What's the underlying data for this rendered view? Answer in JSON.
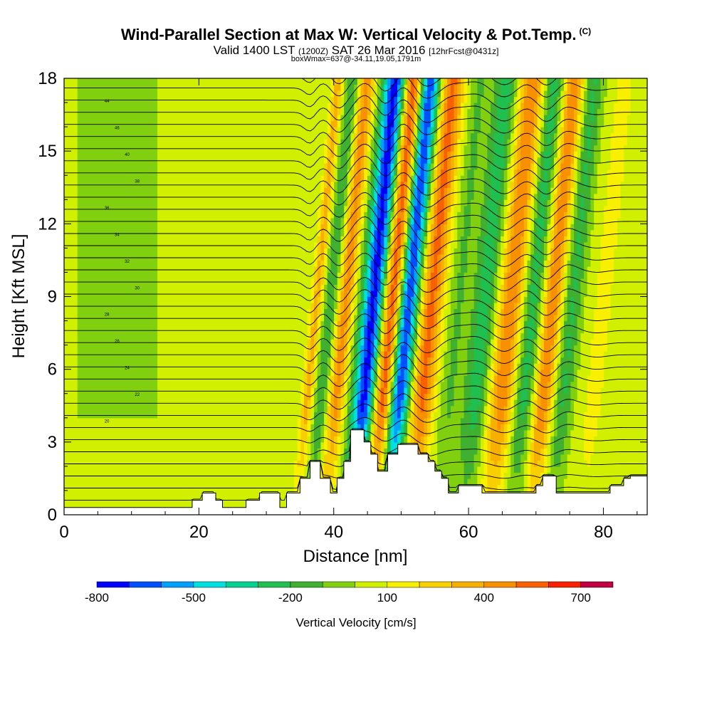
{
  "titles": {
    "main": "Wind-Parallel Section at Max W: Vertical Velocity & Pot.Temp.",
    "copyright": "(C)",
    "valid_prefix": "Valid 1400 LST",
    "valid_z": "(1200Z)",
    "valid_date": "SAT 26 Mar 2016",
    "valid_fcst": "[12hrFcst@0431z]",
    "box_info": "boxWmax=637@-34.11,19.05,1791m"
  },
  "chart_data": {
    "type": "cross-section",
    "xlabel": "Distance [nm]",
    "ylabel": "Height [Kft MSL]",
    "xlim": [
      0,
      86.5
    ],
    "ylim": [
      0,
      18
    ],
    "xticks": [
      0,
      20,
      40,
      60,
      80
    ],
    "yticks": [
      0,
      3,
      6,
      9,
      12,
      15,
      18
    ],
    "xticklabels": [
      "0",
      "20",
      "40",
      "60",
      "80"
    ],
    "yticklabels": [
      "0",
      "3",
      "6",
      "9",
      "12",
      "15",
      "18"
    ],
    "colorbar": {
      "label": "Vertical Velocity [cm/s]",
      "levels": [
        -800,
        -700,
        -600,
        -500,
        -400,
        -300,
        -200,
        -100,
        0,
        100,
        200,
        300,
        400,
        500,
        600,
        700,
        800
      ],
      "colors": [
        "#0000ff",
        "#0050ff",
        "#00a0ff",
        "#00e0e0",
        "#00d090",
        "#20c050",
        "#40b030",
        "#80d010",
        "#d0f000",
        "#f8f000",
        "#f8d000",
        "#f8b000",
        "#f89000",
        "#f86000",
        "#f82000",
        "#c00040"
      ],
      "ticklabels": [
        "-800",
        "-500",
        "-200",
        "100",
        "400",
        "700"
      ],
      "tickvalues": [
        -800,
        -500,
        -200,
        100,
        400,
        700
      ]
    },
    "velocity_bands": [
      {
        "x": 36.5,
        "w": 300,
        "width": 0.8,
        "tilt": 0.0
      },
      {
        "x": 38.6,
        "w": -250,
        "width": 1.0,
        "tilt": 0.0
      },
      {
        "x": 40.8,
        "w": 400,
        "width": 1.2,
        "tilt": 0.0
      },
      {
        "x": 45.0,
        "w": -800,
        "width": 1.8,
        "tilt": 0.0
      },
      {
        "x": 47.8,
        "w": 700,
        "width": 1.6,
        "tilt": 0.0
      },
      {
        "x": 50.0,
        "w": -800,
        "width": 1.7,
        "tilt": 0.0
      },
      {
        "x": 53.5,
        "w": 500,
        "width": 1.7,
        "tilt": 0.0
      },
      {
        "x": 57.5,
        "w": -150,
        "width": 1.4,
        "tilt": 0.0
      },
      {
        "x": 61.5,
        "w": -300,
        "width": 2.0,
        "tilt": 0.0
      },
      {
        "x": 65.3,
        "w": 450,
        "width": 2.0,
        "tilt": 0.0
      },
      {
        "x": 68.5,
        "w": -300,
        "width": 1.6,
        "tilt": 0.0
      },
      {
        "x": 71.5,
        "w": 450,
        "width": 1.4,
        "tilt": 0.0
      },
      {
        "x": 74.5,
        "w": -250,
        "width": 1.4,
        "tilt": 0.0
      },
      {
        "x": 79.0,
        "w": 100,
        "width": 1.5,
        "tilt": 0.0
      }
    ],
    "terrain": {
      "x": [
        0,
        19,
        19,
        20.5,
        20.5,
        22.5,
        22.5,
        23.5,
        23.5,
        27,
        27,
        29,
        29,
        32,
        32,
        33,
        33,
        35,
        35,
        36.5,
        36.5,
        38,
        38,
        39.5,
        39.5,
        40.5,
        40.5,
        41.5,
        41.5,
        42.5,
        42.5,
        44.5,
        44.5,
        45.5,
        45.5,
        46.5,
        46.5,
        48,
        48,
        49.5,
        49.5,
        52.5,
        52.5,
        54,
        54,
        55,
        55,
        56,
        56,
        57,
        57,
        58.5,
        58.5,
        62,
        62,
        70,
        70,
        71,
        71,
        73,
        73,
        81,
        81,
        83,
        83,
        84,
        84,
        86.5
      ],
      "y": [
        0.3,
        0.3,
        0.6,
        0.6,
        0.9,
        0.9,
        0.6,
        0.6,
        0.3,
        0.3,
        0.6,
        0.6,
        0.9,
        0.9,
        0.3,
        0.3,
        0.9,
        0.9,
        1.5,
        1.5,
        2.2,
        2.2,
        1.5,
        1.5,
        0.9,
        0.9,
        1.5,
        1.5,
        2.2,
        2.2,
        3.5,
        3.5,
        3.0,
        3.0,
        2.5,
        2.5,
        1.8,
        1.8,
        2.5,
        2.5,
        2.9,
        2.9,
        2.5,
        2.5,
        2.2,
        2.2,
        1.8,
        1.8,
        1.5,
        1.5,
        0.9,
        0.9,
        1.2,
        1.2,
        0.9,
        0.9,
        1.2,
        1.2,
        1.6,
        1.6,
        0.9,
        0.9,
        1.2,
        1.2,
        1.5,
        1.5,
        1.6,
        1.6
      ]
    },
    "isentrope_labels": [
      "44",
      "46",
      "40",
      "38",
      "36",
      "34",
      "32",
      "30",
      "28",
      "26",
      "24",
      "22",
      "20"
    ]
  }
}
